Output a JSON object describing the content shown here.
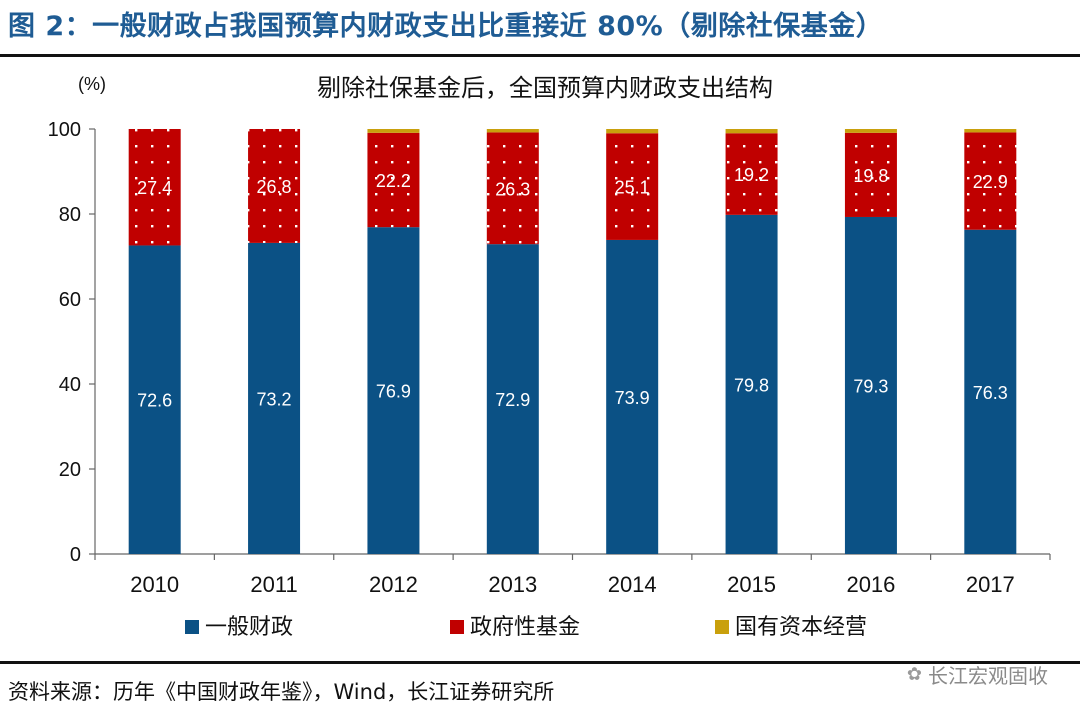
{
  "figure_title": "图 2：一般财政占我国预算内财政支出比重接近 80%（剔除社保基金）",
  "source_text": "资料来源：历年《中国财政年鉴》，Wind，长江证券研究所",
  "watermark": {
    "icon": "wechat-icon",
    "text": "长江宏观固收"
  },
  "colors": {
    "series1": "#0b5185",
    "series2": "#c00000",
    "series3": "#c9a00c",
    "title": "#1f5c94"
  },
  "chart_data": {
    "type": "bar",
    "stacked": true,
    "title": "剔除社保基金后，全国预算内财政支出结构",
    "ylabel": "(%)",
    "xlabel": "",
    "ylim": [
      0,
      100
    ],
    "yticks": [
      0,
      20,
      40,
      60,
      80,
      100
    ],
    "grid": false,
    "legend_position": "bottom",
    "categories": [
      "2010",
      "2011",
      "2012",
      "2013",
      "2014",
      "2015",
      "2016",
      "2017"
    ],
    "series": [
      {
        "name": "一般财政",
        "values": [
          72.6,
          73.2,
          76.9,
          72.9,
          73.9,
          79.8,
          79.3,
          76.3
        ],
        "labels": [
          "72.6",
          "73.2",
          "76.9",
          "72.9",
          "73.9",
          "79.8",
          "79.3",
          "76.3"
        ]
      },
      {
        "name": "政府性基金",
        "values": [
          27.4,
          26.8,
          22.2,
          26.3,
          25.1,
          19.2,
          19.8,
          22.9
        ],
        "labels": [
          "27.4",
          "26.8",
          "22.2",
          "26.3",
          "25.1",
          "19.2",
          "19.8",
          "22.9"
        ]
      },
      {
        "name": "国有资本经营",
        "values": [
          0.0,
          0.0,
          0.9,
          0.8,
          1.0,
          1.0,
          0.9,
          0.8
        ],
        "labels": []
      }
    ]
  }
}
